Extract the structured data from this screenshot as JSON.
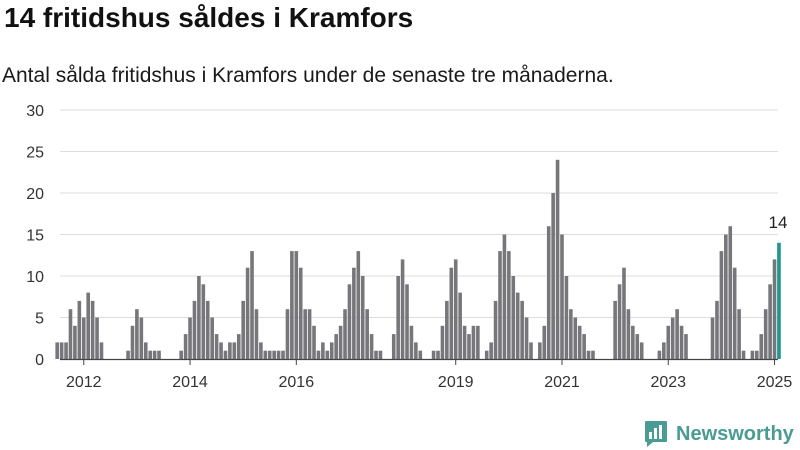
{
  "header": {
    "title": "14 fritidshus såldes i Kramfors",
    "subtitle": "Antal sålda fritidshus i Kramfors under de senaste tre månaderna."
  },
  "logo": {
    "text": "Newsworthy",
    "icon": "bar-chart-logo-icon"
  },
  "colors": {
    "bar": "#77767a",
    "highlight": "#1d9690",
    "grid": "#dddddd",
    "axis": "#444444"
  },
  "chart_data": {
    "type": "bar",
    "title": "",
    "xlabel": "",
    "ylabel": "",
    "ylim": [
      0,
      30
    ],
    "yticks": [
      0,
      5,
      10,
      15,
      20,
      25,
      30
    ],
    "xticks": [
      "2012",
      "2014",
      "2016",
      "2019",
      "2021",
      "2023",
      "2025"
    ],
    "grid": true,
    "series": [
      {
        "values": [
          2,
          2,
          2,
          6,
          4,
          7,
          5,
          8,
          7,
          5,
          2,
          0,
          0,
          0,
          0,
          0,
          1,
          4,
          6,
          5,
          2,
          1,
          1,
          1,
          0,
          0,
          0,
          0,
          1,
          3,
          5,
          7,
          10,
          9,
          7,
          5,
          3,
          2,
          1,
          2,
          2,
          3,
          7,
          11,
          13,
          6,
          2,
          1,
          1,
          1,
          1,
          1,
          6,
          13,
          13,
          11,
          6,
          6,
          4,
          1,
          2,
          1,
          2,
          3,
          4,
          6,
          9,
          11,
          13,
          10,
          6,
          3,
          1,
          1,
          0,
          0,
          3,
          10,
          12,
          9,
          4,
          2,
          1,
          0,
          0,
          1,
          1,
          4,
          7,
          11,
          12,
          8,
          4,
          3,
          4,
          4,
          0,
          1,
          2,
          7,
          13,
          15,
          13,
          10,
          8,
          7,
          5,
          2,
          0,
          2,
          4,
          16,
          20,
          24,
          15,
          10,
          6,
          5,
          4,
          3,
          1,
          1,
          0,
          0,
          0,
          0,
          7,
          9,
          11,
          6,
          4,
          3,
          2,
          0,
          0,
          0,
          1,
          2,
          4,
          5,
          6,
          4,
          3,
          0,
          0,
          0,
          0,
          0,
          5,
          7,
          13,
          15,
          16,
          11,
          6,
          1,
          0,
          1,
          1,
          3,
          6,
          9,
          12,
          14
        ]
      }
    ],
    "highlight": {
      "index": 163,
      "label": "14"
    }
  }
}
